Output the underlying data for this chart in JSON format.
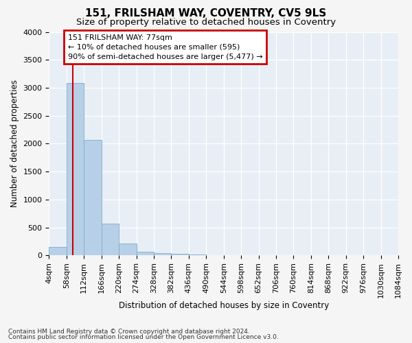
{
  "title": "151, FRILSHAM WAY, COVENTRY, CV5 9LS",
  "subtitle": "Size of property relative to detached houses in Coventry",
  "xlabel": "Distribution of detached houses by size in Coventry",
  "ylabel": "Number of detached properties",
  "footnote1": "Contains HM Land Registry data © Crown copyright and database right 2024.",
  "footnote2": "Contains public sector information licensed under the Open Government Licence v3.0.",
  "bar_edges": [
    4,
    58,
    112,
    166,
    220,
    274,
    328,
    382,
    436,
    490,
    544,
    598,
    652,
    706,
    760,
    814,
    868,
    922,
    976,
    1030,
    1084
  ],
  "bar_heights": [
    155,
    3080,
    2060,
    570,
    210,
    70,
    35,
    22,
    12,
    0,
    0,
    0,
    0,
    0,
    0,
    0,
    0,
    0,
    0,
    0
  ],
  "bar_color": "#b8cfe8",
  "bar_edge_color": "#7aaecc",
  "property_line_x": 77,
  "property_line_color": "#cc0000",
  "annotation_line1": "151 FRILSHAM WAY: 77sqm",
  "annotation_line2": "← 10% of detached houses are smaller (595)",
  "annotation_line3": "90% of semi-detached houses are larger (5,477) →",
  "annotation_box_color": "#cc0000",
  "ylim": [
    0,
    4000
  ],
  "background_color": "#f5f5f5",
  "plot_background": "#e8eef5",
  "grid_color": "#ffffff",
  "title_fontsize": 11,
  "subtitle_fontsize": 9.5,
  "axis_label_fontsize": 8.5,
  "tick_fontsize": 8
}
